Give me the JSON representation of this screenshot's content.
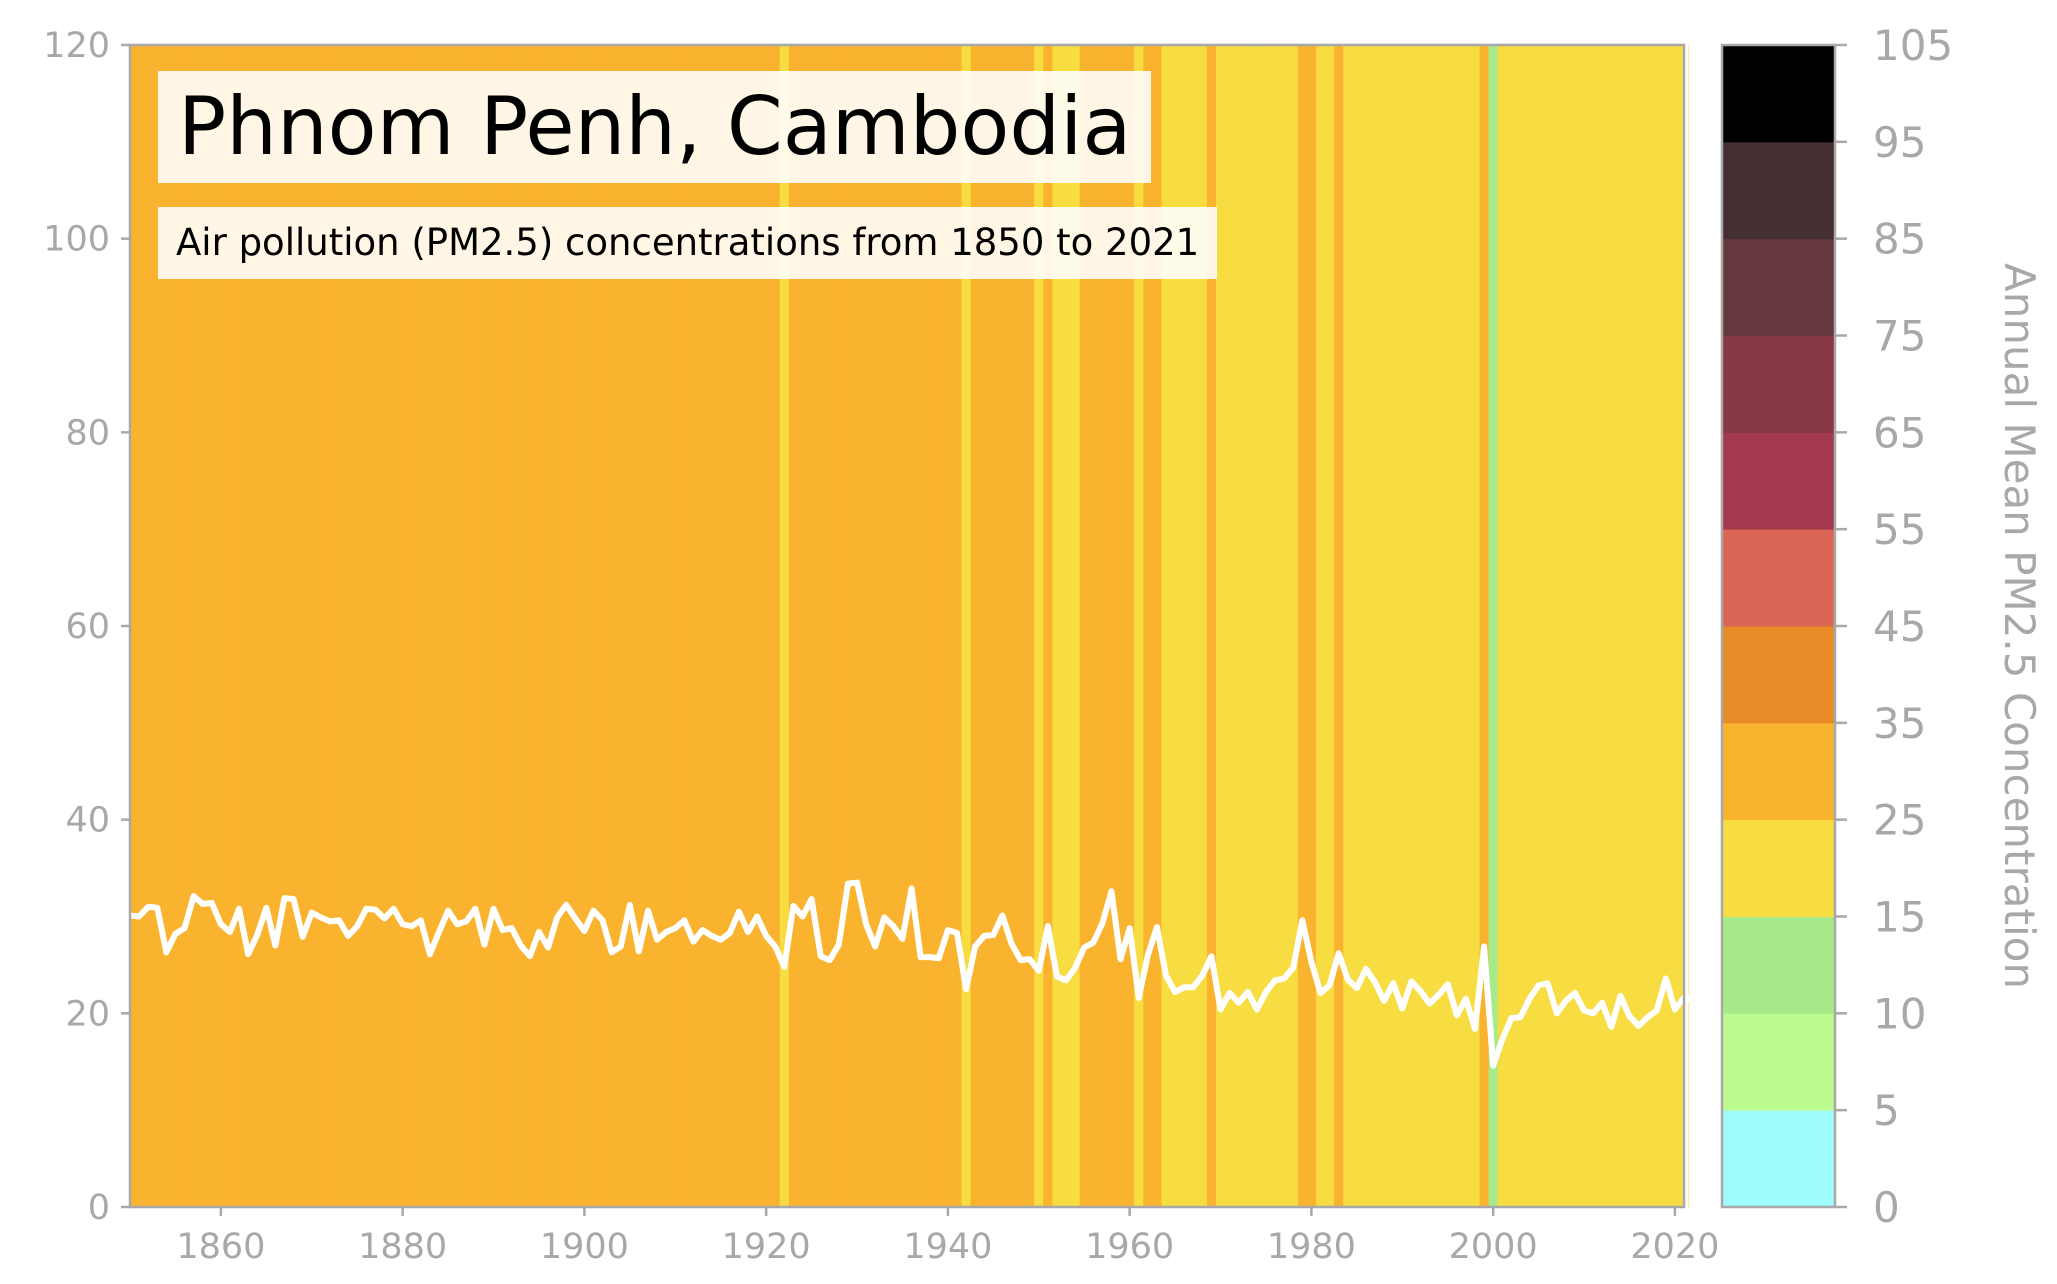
{
  "chart_data": {
    "type": "line",
    "title": "Phnom Penh, Cambodia",
    "subtitle": "Air pollution (PM2.5) concentrations from 1850 to 2021",
    "xlabel": "",
    "ylabel": "",
    "xlim": [
      1850,
      2021
    ],
    "ylim": [
      0,
      120
    ],
    "x_ticks": [
      1860,
      1880,
      1900,
      1920,
      1940,
      1960,
      1980,
      2000,
      2020
    ],
    "y_ticks": [
      0,
      20,
      40,
      60,
      80,
      100,
      120
    ],
    "grid": false,
    "background": "warming-stripes (each year's vertical band coloured by that year's PM2.5 level)",
    "line_color": "#ffffff",
    "series": [
      {
        "x_start": 1850,
        "values": [
          30.1,
          30.0,
          31.0,
          30.9,
          26.3,
          28.2,
          28.8,
          32.1,
          31.3,
          31.4,
          29.2,
          28.4,
          30.8,
          26.1,
          28.1,
          30.9,
          27.0,
          31.9,
          31.8,
          27.9,
          30.4,
          29.9,
          29.5,
          29.6,
          28.0,
          29.0,
          30.8,
          30.7,
          29.8,
          30.8,
          29.2,
          29.0,
          29.6,
          26.1,
          28.4,
          30.6,
          29.2,
          29.5,
          30.8,
          27.1,
          30.8,
          28.6,
          28.8,
          27.0,
          25.9,
          28.4,
          26.8,
          29.9,
          31.2,
          29.8,
          28.5,
          30.6,
          29.6,
          26.3,
          26.9,
          31.2,
          26.4,
          30.6,
          27.6,
          28.4,
          28.8,
          29.6,
          27.4,
          28.6,
          28.0,
          27.6,
          28.3,
          30.5,
          28.4,
          30.0,
          28.0,
          26.9,
          24.8,
          31.1,
          30.0,
          31.8,
          25.9,
          25.5,
          27.1,
          33.4,
          33.5,
          29.2,
          26.9,
          29.9,
          29.0,
          27.7,
          32.9,
          25.8,
          25.8,
          25.7,
          28.6,
          28.3,
          22.5,
          26.9,
          28.0,
          28.1,
          30.1,
          27.2,
          25.5,
          25.6,
          24.4,
          29.0,
          23.8,
          23.4,
          24.7,
          26.8,
          27.3,
          29.3,
          32.6,
          25.6,
          28.8,
          21.6,
          26.0,
          28.9,
          23.9,
          22.2,
          22.7,
          22.7,
          23.9,
          25.9,
          20.4,
          22.1,
          21.1,
          22.2,
          20.4,
          22.2,
          23.4,
          23.6,
          24.7,
          29.6,
          25.3,
          22.1,
          22.9,
          26.2,
          23.5,
          22.6,
          24.6,
          23.2,
          21.3,
          23.1,
          20.5,
          23.3,
          22.3,
          21.0,
          21.9,
          23.0,
          19.8,
          21.5,
          18.4,
          26.9,
          14.6,
          17.3,
          19.5,
          19.6,
          21.5,
          22.9,
          23.1,
          20.0,
          21.3,
          22.1,
          20.3,
          20.0,
          21.1,
          18.6,
          21.8,
          19.7,
          18.7,
          19.6,
          20.3,
          23.6,
          20.4,
          21.6,
          21.5
        ]
      }
    ],
    "colorbar": {
      "label": "Annual Mean PM2.5 Concentration",
      "ticks": [
        0,
        5,
        10,
        15,
        25,
        35,
        45,
        55,
        65,
        75,
        85,
        95,
        105
      ],
      "bins": [
        {
          "min": 0,
          "max": 5,
          "color": "#9ffcfd"
        },
        {
          "min": 5,
          "max": 10,
          "color": "#bdfa8f"
        },
        {
          "min": 10,
          "max": 15,
          "color": "#a8ea8a"
        },
        {
          "min": 15,
          "max": 25,
          "color": "#f7dd42"
        },
        {
          "min": 25,
          "max": 35,
          "color": "#fab32e"
        },
        {
          "min": 35,
          "max": 45,
          "color": "#e78a27"
        },
        {
          "min": 45,
          "max": 55,
          "color": "#da6756"
        },
        {
          "min": 55,
          "max": 65,
          "color": "#a43a4f"
        },
        {
          "min": 65,
          "max": 75,
          "color": "#873746"
        },
        {
          "min": 75,
          "max": 85,
          "color": "#66383d"
        },
        {
          "min": 85,
          "max": 95,
          "color": "#442e31"
        },
        {
          "min": 95,
          "max": 105,
          "color": "#000000"
        }
      ]
    }
  }
}
